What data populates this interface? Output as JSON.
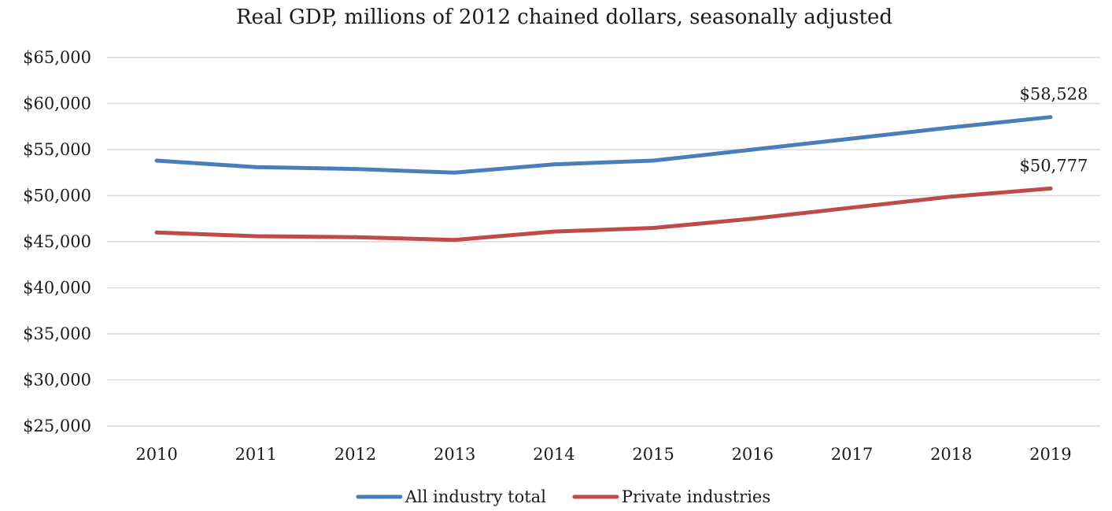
{
  "chart_data": {
    "type": "line",
    "title": "Real GDP, millions of 2012 chained dollars, seasonally adjusted",
    "xlabel": "",
    "ylabel": "",
    "categories": [
      "2010",
      "2011",
      "2012",
      "2013",
      "2014",
      "2015",
      "2016",
      "2017",
      "2018",
      "2019"
    ],
    "yticks": [
      "$25,000",
      "$30,000",
      "$35,000",
      "$40,000",
      "$45,000",
      "$50,000",
      "$55,000",
      "$60,000",
      "$65,000"
    ],
    "ylim": [
      25000,
      65000
    ],
    "grid": true,
    "legend_position": "bottom",
    "series": [
      {
        "name": "All industry total",
        "color": "#4a7ebb",
        "values": [
          53800,
          53100,
          52900,
          52500,
          53400,
          53800,
          55000,
          56200,
          57400,
          58528
        ],
        "end_label": "$58,528"
      },
      {
        "name": "Private industries",
        "color": "#be4b48",
        "values": [
          46000,
          45600,
          45500,
          45200,
          46100,
          46500,
          47500,
          48700,
          49900,
          50777
        ],
        "end_label": "$50,777"
      }
    ]
  }
}
